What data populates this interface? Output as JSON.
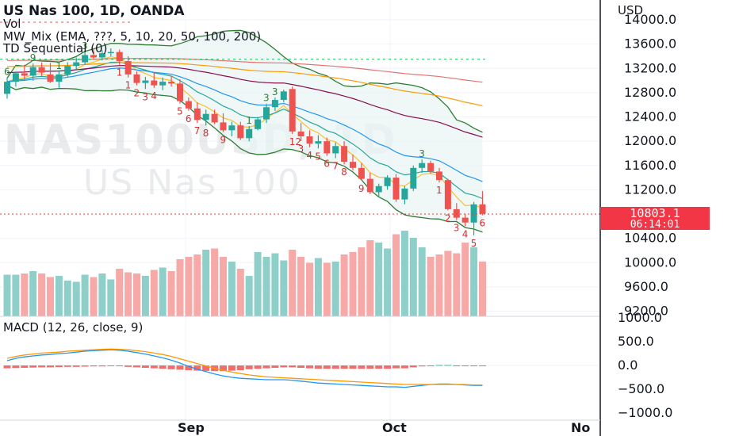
{
  "header": {
    "symbol_title": "US Nas 100, 1D, OANDA",
    "vol_label": "Vol",
    "mw_label": "MW_Mix (EMA, ???, 5, 10, 20, 50, 100, 200)",
    "td_label": "TD Sequential (0)"
  },
  "watermark": {
    "line1": "NAS100USD, 1D",
    "line2": "US Nas 100"
  },
  "price_axis": {
    "currency": "USD",
    "ticks": [
      "14000.0",
      "13600.0",
      "13200.0",
      "12800.0",
      "12400.0",
      "12000.0",
      "11600.0",
      "11200.0",
      "10400.0",
      "10000.0",
      "9600.0",
      "9200.0"
    ]
  },
  "price_tag": {
    "value": "10803.1",
    "countdown": "06:14:01"
  },
  "macd": {
    "label": "MACD (12, 26, close, 9)",
    "ticks": [
      "1000.0",
      "500.0",
      "0.0",
      "−500.0",
      "−1000.0"
    ]
  },
  "time_axis": {
    "labels": [
      "Sep",
      "Oct",
      "No"
    ]
  },
  "colors": {
    "up": "#26a69a",
    "down": "#ef5350",
    "price_line": "#f23645",
    "signal_green": "#089981"
  },
  "td_numbers": {
    "green": [
      "6",
      "9",
      "1",
      "3",
      "1",
      "3",
      "3",
      "3"
    ],
    "red": [
      "1",
      "1",
      "2",
      "3",
      "4",
      "5",
      "6",
      "7",
      "8",
      "9",
      "12",
      "3",
      "4",
      "5",
      "6",
      "7",
      "8",
      "9",
      "1",
      "2",
      "3",
      "4",
      "5",
      "6"
    ]
  },
  "chart_data": {
    "type": "candlestick",
    "title": "US Nas 100, 1D, OANDA",
    "ylim": [
      9200,
      14000
    ],
    "last_price": 10803.1,
    "candles": [
      {
        "o": 12780,
        "h": 13050,
        "l": 12700,
        "c": 12980
      },
      {
        "o": 12980,
        "h": 13150,
        "l": 12900,
        "c": 13120
      },
      {
        "o": 13120,
        "h": 13260,
        "l": 13020,
        "c": 13080
      },
      {
        "o": 13080,
        "h": 13280,
        "l": 13000,
        "c": 13220
      },
      {
        "o": 13220,
        "h": 13300,
        "l": 13080,
        "c": 13130
      },
      {
        "o": 13100,
        "h": 13290,
        "l": 12960,
        "c": 12980
      },
      {
        "o": 12980,
        "h": 13150,
        "l": 12880,
        "c": 13100
      },
      {
        "o": 13100,
        "h": 13300,
        "l": 13060,
        "c": 13240
      },
      {
        "o": 13240,
        "h": 13380,
        "l": 13180,
        "c": 13300
      },
      {
        "o": 13300,
        "h": 13480,
        "l": 13260,
        "c": 13420
      },
      {
        "o": 13420,
        "h": 13520,
        "l": 13340,
        "c": 13380
      },
      {
        "o": 13380,
        "h": 13500,
        "l": 13330,
        "c": 13450
      },
      {
        "o": 13450,
        "h": 13530,
        "l": 13400,
        "c": 13470
      },
      {
        "o": 13470,
        "h": 13510,
        "l": 13260,
        "c": 13320
      },
      {
        "o": 13320,
        "h": 13400,
        "l": 13050,
        "c": 13100
      },
      {
        "o": 13100,
        "h": 13150,
        "l": 12920,
        "c": 12960
      },
      {
        "o": 12960,
        "h": 13060,
        "l": 12860,
        "c": 13000
      },
      {
        "o": 13000,
        "h": 13120,
        "l": 12880,
        "c": 12920
      },
      {
        "o": 12920,
        "h": 13050,
        "l": 12840,
        "c": 12980
      },
      {
        "o": 12980,
        "h": 13080,
        "l": 12900,
        "c": 12950
      },
      {
        "o": 12950,
        "h": 13020,
        "l": 12620,
        "c": 12660
      },
      {
        "o": 12660,
        "h": 12720,
        "l": 12500,
        "c": 12540
      },
      {
        "o": 12540,
        "h": 12640,
        "l": 12300,
        "c": 12350
      },
      {
        "o": 12350,
        "h": 12520,
        "l": 12260,
        "c": 12450
      },
      {
        "o": 12450,
        "h": 12520,
        "l": 12280,
        "c": 12310
      },
      {
        "o": 12310,
        "h": 12460,
        "l": 12150,
        "c": 12180
      },
      {
        "o": 12180,
        "h": 12320,
        "l": 12080,
        "c": 12260
      },
      {
        "o": 12260,
        "h": 12320,
        "l": 12020,
        "c": 12050
      },
      {
        "o": 12050,
        "h": 12250,
        "l": 12000,
        "c": 12200
      },
      {
        "o": 12200,
        "h": 12400,
        "l": 12180,
        "c": 12360
      },
      {
        "o": 12360,
        "h": 12620,
        "l": 12300,
        "c": 12560
      },
      {
        "o": 12560,
        "h": 12720,
        "l": 12500,
        "c": 12680
      },
      {
        "o": 12680,
        "h": 12850,
        "l": 12640,
        "c": 12820
      },
      {
        "o": 12860,
        "h": 12900,
        "l": 12120,
        "c": 12160
      },
      {
        "o": 12160,
        "h": 12300,
        "l": 12000,
        "c": 12080
      },
      {
        "o": 12080,
        "h": 12180,
        "l": 11900,
        "c": 11960
      },
      {
        "o": 11960,
        "h": 12100,
        "l": 11880,
        "c": 12000
      },
      {
        "o": 12000,
        "h": 12060,
        "l": 11760,
        "c": 11800
      },
      {
        "o": 11800,
        "h": 11980,
        "l": 11720,
        "c": 11920
      },
      {
        "o": 11920,
        "h": 12000,
        "l": 11620,
        "c": 11660
      },
      {
        "o": 11660,
        "h": 11780,
        "l": 11520,
        "c": 11560
      },
      {
        "o": 11560,
        "h": 11640,
        "l": 11350,
        "c": 11380
      },
      {
        "o": 11380,
        "h": 11480,
        "l": 11130,
        "c": 11160
      },
      {
        "o": 11160,
        "h": 11300,
        "l": 11080,
        "c": 11260
      },
      {
        "o": 11260,
        "h": 11440,
        "l": 11200,
        "c": 11400
      },
      {
        "o": 11400,
        "h": 11460,
        "l": 11000,
        "c": 11040
      },
      {
        "o": 11040,
        "h": 11260,
        "l": 10960,
        "c": 11220
      },
      {
        "o": 11220,
        "h": 11600,
        "l": 11180,
        "c": 11560
      },
      {
        "o": 11560,
        "h": 11700,
        "l": 11480,
        "c": 11640
      },
      {
        "o": 11640,
        "h": 11680,
        "l": 11460,
        "c": 11500
      },
      {
        "o": 11500,
        "h": 11560,
        "l": 11320,
        "c": 11360
      },
      {
        "o": 11360,
        "h": 11380,
        "l": 10860,
        "c": 10880
      },
      {
        "o": 10880,
        "h": 10980,
        "l": 10700,
        "c": 10740
      },
      {
        "o": 10740,
        "h": 10800,
        "l": 10600,
        "c": 10660
      },
      {
        "o": 10660,
        "h": 11000,
        "l": 10450,
        "c": 10960
      },
      {
        "o": 10960,
        "h": 11180,
        "l": 10780,
        "c": 10803.1
      }
    ],
    "volume_axis_max": 1.0,
    "volume": [
      0.35,
      0.35,
      0.36,
      0.38,
      0.36,
      0.33,
      0.34,
      0.3,
      0.29,
      0.35,
      0.33,
      0.36,
      0.31,
      0.4,
      0.37,
      0.36,
      0.34,
      0.39,
      0.41,
      0.38,
      0.48,
      0.5,
      0.52,
      0.56,
      0.57,
      0.5,
      0.46,
      0.4,
      0.34,
      0.54,
      0.5,
      0.53,
      0.47,
      0.56,
      0.5,
      0.45,
      0.49,
      0.45,
      0.46,
      0.52,
      0.54,
      0.58,
      0.64,
      0.62,
      0.57,
      0.69,
      0.72,
      0.66,
      0.58,
      0.5,
      0.52,
      0.55,
      0.53,
      0.62,
      0.58,
      0.46
    ],
    "macd_ylim": [
      -1000,
      1000
    ],
    "macd_line": [
      100,
      150,
      180,
      200,
      220,
      230,
      250,
      260,
      280,
      300,
      310,
      320,
      330,
      320,
      300,
      270,
      240,
      200,
      160,
      110,
      50,
      -20,
      -80,
      -130,
      -180,
      -220,
      -250,
      -270,
      -280,
      -290,
      -300,
      -300,
      -300,
      -310,
      -330,
      -350,
      -370,
      -380,
      -390,
      -400,
      -410,
      -420,
      -430,
      -440,
      -450,
      -450,
      -460,
      -440,
      -420,
      -400,
      -390,
      -390,
      -400,
      -410,
      -420,
      -420
    ],
    "signal_line": [
      150,
      190,
      220,
      240,
      260,
      270,
      280,
      300,
      310,
      320,
      330,
      340,
      345,
      340,
      330,
      310,
      290,
      260,
      230,
      190,
      140,
      90,
      40,
      -10,
      -60,
      -100,
      -140,
      -170,
      -200,
      -220,
      -240,
      -250,
      -260,
      -270,
      -280,
      -290,
      -300,
      -310,
      -320,
      -330,
      -340,
      -350,
      -360,
      -370,
      -380,
      -390,
      -400,
      -400,
      -400,
      -400,
      -400,
      -400,
      -400,
      -400,
      -410,
      -410
    ],
    "macd_hist": [
      -60,
      -55,
      -50,
      -45,
      -40,
      -40,
      -35,
      -30,
      -30,
      -25,
      -20,
      -20,
      -15,
      -15,
      -30,
      -40,
      -50,
      -60,
      -70,
      -80,
      -90,
      -100,
      -110,
      -115,
      -120,
      -120,
      -110,
      -100,
      -80,
      -70,
      -60,
      -50,
      -40,
      -40,
      -50,
      -60,
      -70,
      -70,
      -70,
      -70,
      -70,
      -70,
      -70,
      -70,
      -70,
      -60,
      -60,
      -40,
      -20,
      0,
      10,
      10,
      0,
      -10,
      -10,
      -10
    ]
  }
}
